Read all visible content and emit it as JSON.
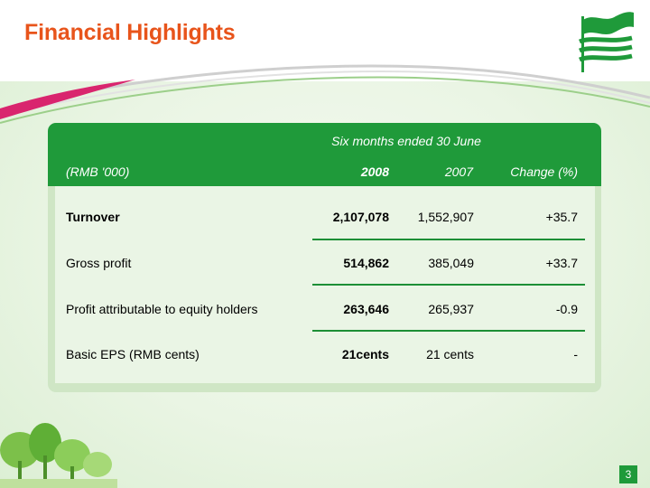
{
  "slide": {
    "title": "Financial Highlights",
    "page_number": "3"
  },
  "table": {
    "period_header": "Six months ended 30 June",
    "unit_label": "(RMB '000)",
    "columns": [
      "2008",
      "2007",
      "Change (%)"
    ],
    "rows": [
      {
        "label": "Turnover",
        "y2008": "2,107,078",
        "y2007": "1,552,907",
        "change": "+35.7"
      },
      {
        "label": "Gross profit",
        "y2008": "514,862",
        "y2007": "385,049",
        "change": "+33.7"
      },
      {
        "label": "Profit attributable to equity holders",
        "y2008": "263,646",
        "y2007": "265,937",
        "change": "-0.9"
      },
      {
        "label": "Basic EPS (RMB cents)",
        "y2008": "21cents",
        "y2007": "21 cents",
        "change": "-"
      }
    ]
  },
  "colors": {
    "title": "#e8541b",
    "header_band": "#1f9a3a",
    "panel": "#cfe6c5",
    "accent_pink": "#d9256e"
  }
}
